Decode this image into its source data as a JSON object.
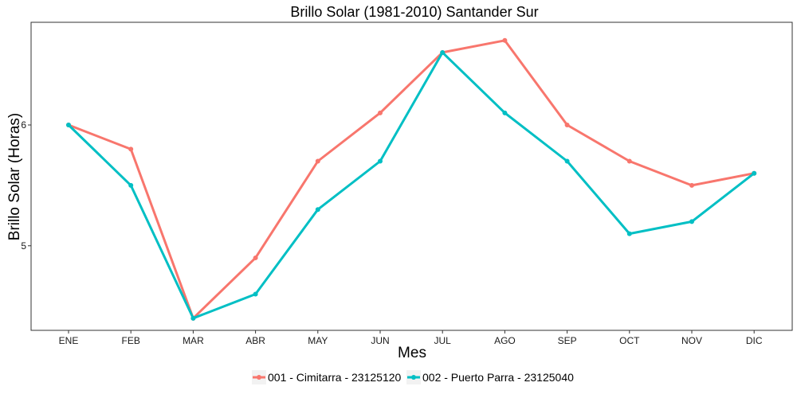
{
  "chart_data": {
    "type": "line",
    "title": "Brillo Solar (1981-2010)  Santander Sur",
    "xlabel": "Mes",
    "ylabel": "Brillo Solar (Horas)",
    "categories": [
      "ENE",
      "FEB",
      "MAR",
      "ABR",
      "MAY",
      "JUN",
      "JUL",
      "AGO",
      "SEP",
      "OCT",
      "NOV",
      "DIC"
    ],
    "y_ticks": [
      5,
      6
    ],
    "ylim": [
      4.3,
      6.85
    ],
    "grid": false,
    "legend_position": "bottom",
    "series": [
      {
        "name": "001 - Cimitarra - 23125120",
        "color": "#F8766D",
        "values": [
          6.0,
          5.8,
          4.4,
          4.9,
          5.7,
          6.1,
          6.6,
          6.7,
          6.0,
          5.7,
          5.5,
          5.6
        ]
      },
      {
        "name": "002 - Puerto Parra - 23125040",
        "color": "#00BFC4",
        "values": [
          6.0,
          5.5,
          4.4,
          4.6,
          5.3,
          5.7,
          6.6,
          6.1,
          5.7,
          5.1,
          5.2,
          5.6
        ]
      }
    ]
  }
}
